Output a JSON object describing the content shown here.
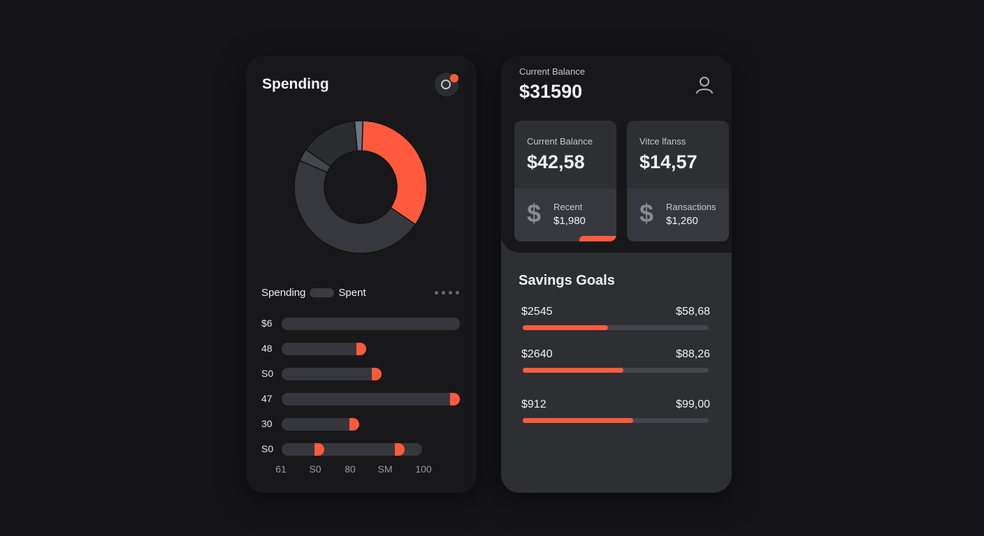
{
  "colors": {
    "accent": "#ff5a3d",
    "card": "#18181b",
    "panel": "#2e2f33"
  },
  "spending": {
    "title": "Spending",
    "settings_icon": "gear-icon",
    "legend": {
      "label1": "Spending",
      "label2": "Spent"
    },
    "donut": [
      {
        "value": 34,
        "color": "#ff5a3d"
      },
      {
        "value": 47,
        "color": "#37383d"
      },
      {
        "value": 3,
        "color": "#45464b"
      },
      {
        "value": 14,
        "color": "#2b2c30"
      },
      {
        "value": 2,
        "color": "#6a7585"
      }
    ],
    "rows": [
      {
        "label": "$6",
        "track": 1.0,
        "markers": []
      },
      {
        "label": "48",
        "track": 0.475,
        "markers": [
          0.475
        ]
      },
      {
        "label": "S0",
        "track": 0.56,
        "markers": [
          0.56
        ]
      },
      {
        "label": "47",
        "track": 1.0,
        "markers": [
          1.0
        ]
      },
      {
        "label": "30",
        "track": 0.435,
        "markers": [
          0.435
        ]
      },
      {
        "label": "S0",
        "track": 0.79,
        "markers": [
          0.24,
          0.69
        ]
      }
    ],
    "axis": [
      "61",
      "S0",
      "80",
      "SM",
      "100"
    ]
  },
  "balance": {
    "label": "Current Balance",
    "value": "$31590",
    "profile_icon": "user-icon",
    "cards": [
      {
        "label": "Current Balance",
        "value": "$42,58",
        "sub_label": "Recent",
        "sub_value": "$1,980",
        "icon": "dollar-icon"
      },
      {
        "label": "Vitce lfanss",
        "value": "$14,57",
        "sub_label": "Ransactions",
        "sub_value": "$1,260",
        "icon": "dollar-icon"
      }
    ]
  },
  "savings": {
    "title": "Savings Goals",
    "goals": [
      {
        "current": "$2545",
        "target": "$58,68",
        "progress": 0.46
      },
      {
        "current": "$2640",
        "target": "$88,26",
        "progress": 0.54
      },
      {
        "current": "$912",
        "target": "$99,00",
        "progress": 0.595
      }
    ]
  }
}
